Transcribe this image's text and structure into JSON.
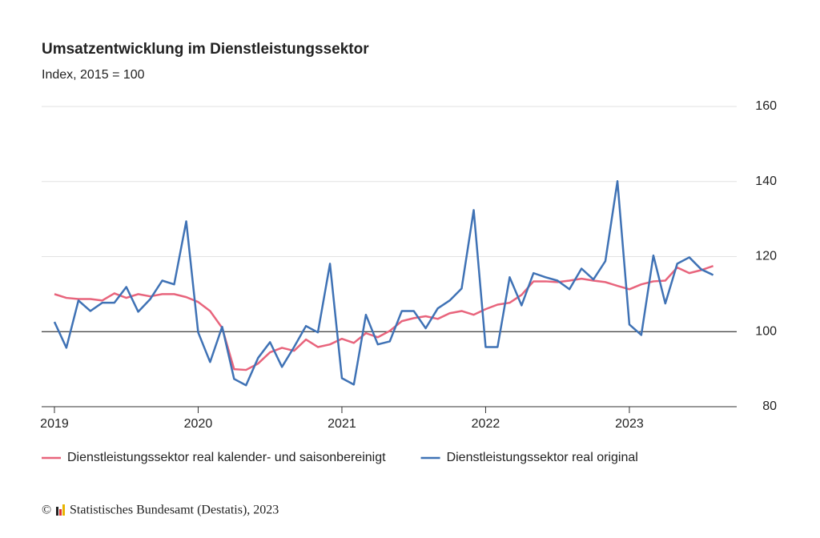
{
  "chart_data": {
    "type": "line",
    "title": "Umsatzentwicklung im Dienstleistungssektor",
    "subtitle": "Index, 2015 = 100",
    "copyright": "©",
    "source": "Statistisches Bundesamt (Destatis), 2023",
    "x": [
      2019,
      2019.083,
      2019.167,
      2019.25,
      2019.333,
      2019.417,
      2019.5,
      2019.583,
      2019.667,
      2019.75,
      2019.833,
      2019.917,
      2020,
      2020.083,
      2020.167,
      2020.25,
      2020.333,
      2020.417,
      2020.5,
      2020.583,
      2020.667,
      2020.75,
      2020.833,
      2020.917,
      2021,
      2021.083,
      2021.167,
      2021.25,
      2021.333,
      2021.417,
      2021.5,
      2021.583,
      2021.667,
      2021.75,
      2021.833,
      2021.917,
      2022,
      2022.083,
      2022.167,
      2022.25,
      2022.333,
      2022.417,
      2022.5,
      2022.583,
      2022.667,
      2022.75,
      2022.833,
      2022.917,
      2023,
      2023.083,
      2023.167,
      2023.25,
      2023.333,
      2023.417,
      2023.5,
      2023.583
    ],
    "series": [
      {
        "name": "Dienstleistungssektor real kalender- und saisonbereinigt",
        "color": "#e8647c",
        "values": [
          110.0,
          109.0,
          108.7,
          108.7,
          108.3,
          110.2,
          109.0,
          110.0,
          109.4,
          110.0,
          110.0,
          109.2,
          107.9,
          105.5,
          101.0,
          90.0,
          89.8,
          91.5,
          94.5,
          95.7,
          94.9,
          97.9,
          95.9,
          96.6,
          98.1,
          97.0,
          99.6,
          98.5,
          100.2,
          102.8,
          103.6,
          104.1,
          103.4,
          104.9,
          105.5,
          104.5,
          106.0,
          107.2,
          107.7,
          109.8,
          113.4,
          113.4,
          113.2,
          113.6,
          114.1,
          113.6,
          113.2,
          112.2,
          111.3,
          112.6,
          113.4,
          113.6,
          117.1,
          115.6,
          116.4,
          117.5
        ]
      },
      {
        "name": "Dienstleistungssektor real original",
        "color": "#3f72b5",
        "values": [
          102.6,
          95.7,
          108.3,
          105.5,
          107.7,
          107.7,
          111.9,
          105.3,
          108.7,
          113.6,
          112.6,
          129.4,
          99.8,
          91.9,
          101.3,
          87.4,
          85.7,
          93.0,
          97.2,
          90.6,
          95.9,
          101.5,
          99.8,
          118.1,
          87.6,
          85.9,
          104.5,
          96.6,
          97.4,
          105.5,
          105.5,
          100.9,
          106.2,
          108.3,
          111.5,
          132.4,
          95.9,
          95.9,
          114.5,
          107.0,
          115.6,
          114.5,
          113.6,
          111.3,
          116.8,
          113.9,
          118.8,
          140.1,
          101.9,
          99.1,
          120.3,
          107.5,
          118.1,
          119.8,
          116.6,
          115.1
        ]
      }
    ],
    "xlim": [
      2018.911,
      2023.719
    ],
    "xticks": [
      2019,
      2020,
      2021,
      2022,
      2023
    ],
    "ylim": [
      80,
      160
    ],
    "yticks": [
      80,
      100,
      120,
      140,
      160
    ],
    "baseline": 100,
    "grid": true,
    "legend": "bottom"
  }
}
